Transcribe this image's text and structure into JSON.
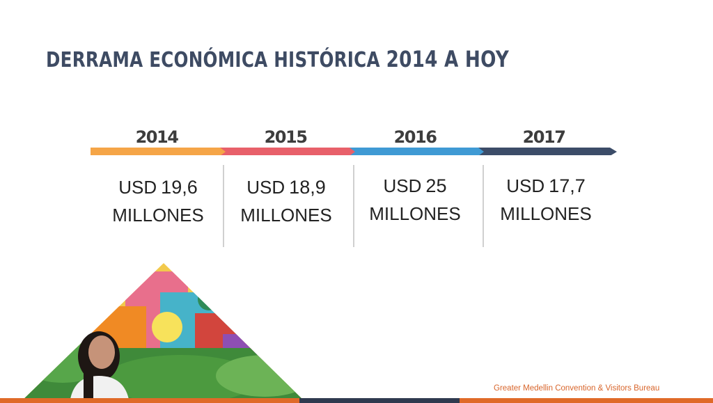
{
  "title": {
    "part1": "DERRAMA ECONÓMICA HISTÓRICA ",
    "part2": "2014 A HOY"
  },
  "timeline": [
    {
      "year": "2014",
      "currency": "USD",
      "amount": "19,6",
      "unit": "MILLONES",
      "color": "#f5a547"
    },
    {
      "year": "2015",
      "currency": "USD",
      "amount": "18,9",
      "unit": "MILLONES",
      "color": "#e8606a"
    },
    {
      "year": "2016",
      "currency": "USD",
      "amount": "25",
      "unit": "MILLONES",
      "color": "#3f9ad4"
    },
    {
      "year": "2017",
      "currency": "USD",
      "amount": "17,7",
      "unit": "MILLONES",
      "color": "#3c4c68"
    }
  ],
  "footer": {
    "text": "Greater Medellin Convention & Visitors Bureau",
    "accent": "#e06a28",
    "dark": "#2f3a4f"
  }
}
